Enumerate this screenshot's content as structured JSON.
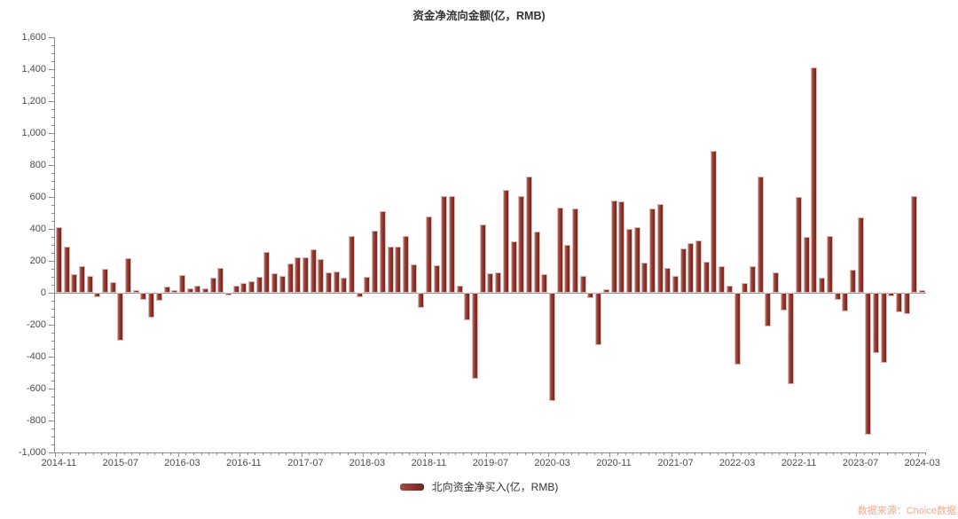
{
  "header": {
    "title": "资金净流向金额(亿，RMB)"
  },
  "legend": {
    "label": "北向资金净买入(亿，RMB)"
  },
  "source": {
    "label": "数据来源：Choice数据"
  },
  "colors": {
    "bar_main": "#8e332b",
    "bar_edge": "#e0bab2",
    "axis": "#8c8c8c",
    "tick_label": "#4d4d4d",
    "title": "#333333",
    "source_text": "#f2a98c",
    "zero_line": "#9a9a9a",
    "background": "#ffffff"
  },
  "chart_data": {
    "type": "bar",
    "title": "资金净流向金额(亿，RMB)",
    "xlabel": "",
    "ylabel": "",
    "ylim": [
      -1000,
      1600
    ],
    "y_tick_interval": 200,
    "y_minor_tick_interval": 50,
    "grid": false,
    "legend_position": "bottom",
    "x_tick_labels": [
      "2014-11",
      "2015-07",
      "2016-03",
      "2016-11",
      "2017-07",
      "2018-03",
      "2018-11",
      "2019-07",
      "2020-03",
      "2020-11",
      "2021-07",
      "2022-03",
      "2022-11",
      "2023-07",
      "2024-03"
    ],
    "x": [
      "2014-11",
      "2014-12",
      "2015-01",
      "2015-02",
      "2015-03",
      "2015-04",
      "2015-05",
      "2015-06",
      "2015-07",
      "2015-08",
      "2015-09",
      "2015-10",
      "2015-11",
      "2015-12",
      "2016-01",
      "2016-02",
      "2016-03",
      "2016-04",
      "2016-05",
      "2016-06",
      "2016-07",
      "2016-08",
      "2016-09",
      "2016-10",
      "2016-11",
      "2016-12",
      "2017-01",
      "2017-02",
      "2017-03",
      "2017-04",
      "2017-05",
      "2017-06",
      "2017-07",
      "2017-08",
      "2017-09",
      "2017-10",
      "2017-11",
      "2017-12",
      "2018-01",
      "2018-02",
      "2018-03",
      "2018-04",
      "2018-05",
      "2018-06",
      "2018-07",
      "2018-08",
      "2018-09",
      "2018-10",
      "2018-11",
      "2018-12",
      "2019-01",
      "2019-02",
      "2019-03",
      "2019-04",
      "2019-05",
      "2019-06",
      "2019-07",
      "2019-08",
      "2019-09",
      "2019-10",
      "2019-11",
      "2019-12",
      "2020-01",
      "2020-02",
      "2020-03",
      "2020-04",
      "2020-05",
      "2020-06",
      "2020-07",
      "2020-08",
      "2020-09",
      "2020-10",
      "2020-11",
      "2020-12",
      "2021-01",
      "2021-02",
      "2021-03",
      "2021-04",
      "2021-05",
      "2021-06",
      "2021-07",
      "2021-08",
      "2021-09",
      "2021-10",
      "2021-11",
      "2021-12",
      "2022-01",
      "2022-02",
      "2022-03",
      "2022-04",
      "2022-05",
      "2022-06",
      "2022-07",
      "2022-08",
      "2022-09",
      "2022-10",
      "2022-11",
      "2022-12",
      "2023-01",
      "2023-02",
      "2023-03",
      "2023-04",
      "2023-05",
      "2023-06",
      "2023-07",
      "2023-08",
      "2023-09",
      "2023-10",
      "2023-11",
      "2023-12",
      "2024-01",
      "2024-02",
      "2024-03"
    ],
    "series": [
      {
        "name": "北向资金净买入(亿，RMB)",
        "values": [
          410,
          287,
          117,
          165,
          105,
          -30,
          148,
          65,
          -302,
          217,
          18,
          -45,
          -158,
          -50,
          37,
          18,
          110,
          28,
          46,
          30,
          95,
          157,
          -15,
          45,
          60,
          75,
          100,
          258,
          120,
          105,
          185,
          220,
          225,
          274,
          213,
          126,
          133,
          93,
          355,
          -28,
          100,
          390,
          510,
          290,
          287,
          355,
          178,
          -95,
          478,
          170,
          607,
          604,
          44,
          -170,
          -537,
          426,
          120,
          130,
          647,
          321,
          604,
          730,
          385,
          116,
          -679,
          533,
          301,
          527,
          104,
          -33,
          -328,
          20,
          580,
          572,
          400,
          412,
          187,
          526,
          558,
          154,
          108,
          278,
          311,
          328,
          195,
          890,
          168,
          45,
          -451,
          63,
          169,
          730,
          -210,
          130,
          -110,
          -570,
          601,
          350,
          1413,
          93,
          354,
          -46,
          -115,
          145,
          470,
          -890,
          -375,
          -440,
          -20,
          -120,
          -133,
          606,
          15
        ]
      }
    ]
  }
}
